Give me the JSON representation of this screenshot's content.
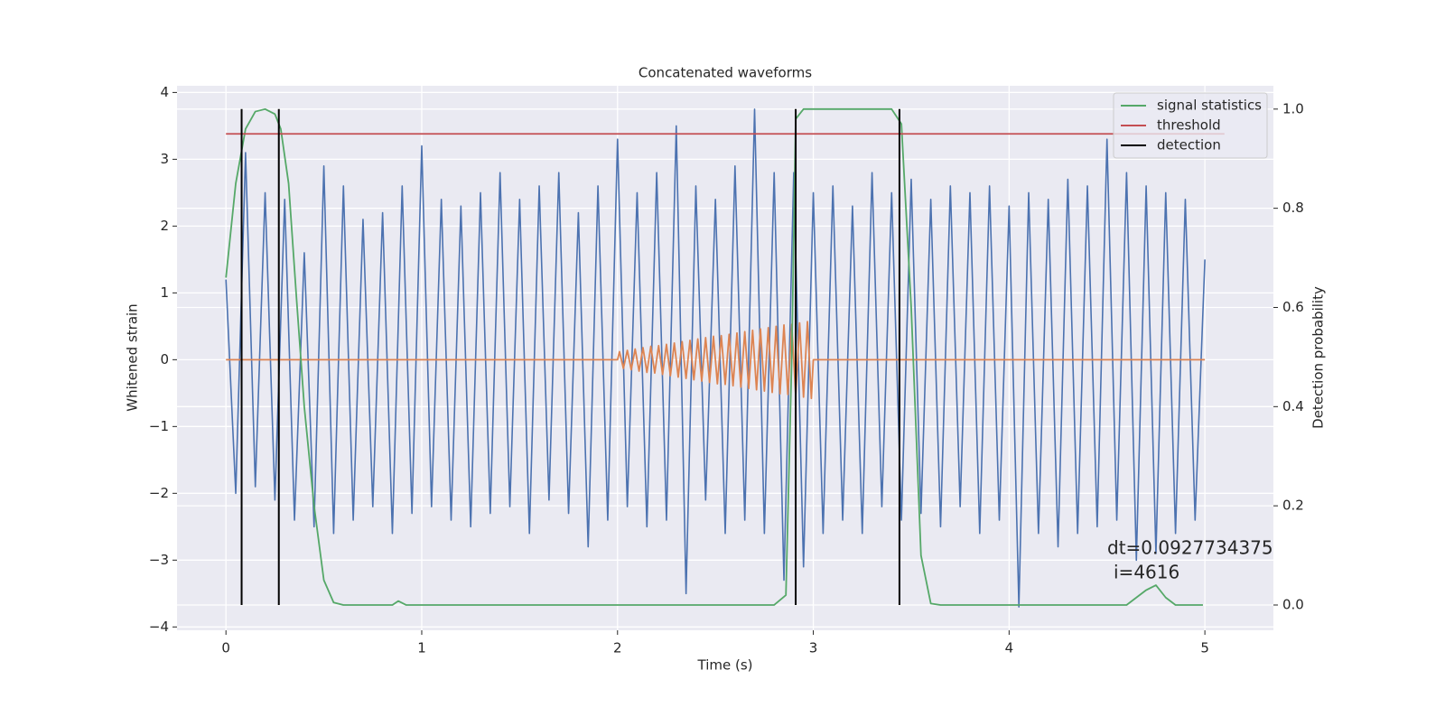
{
  "chart_data": {
    "type": "line",
    "title": "Concatenated waveforms",
    "xlabel": "Time (s)",
    "ylabel": "Whitened strain",
    "y2label": "Detection probability",
    "xlim": [
      -0.25,
      5.35
    ],
    "xticks": [
      0,
      1,
      2,
      3,
      4,
      5
    ],
    "ylim": [
      -4.05,
      4.1
    ],
    "yticks": [
      {
        "value": -4,
        "label": "−4"
      },
      {
        "value": -3,
        "label": "−3"
      },
      {
        "value": -2,
        "label": "−2"
      },
      {
        "value": -1,
        "label": "−1"
      },
      0,
      1,
      2,
      3,
      4
    ],
    "y2lim": [
      -0.051,
      1.047
    ],
    "y2ticks": [
      {
        "value": 0,
        "label": "0.0"
      },
      0.2,
      0.4,
      0.6,
      0.8,
      {
        "value": 1,
        "label": "1.0"
      }
    ],
    "grid": true,
    "legend": "upper right",
    "series": [
      {
        "color": "#4c72b0",
        "x": [
          0,
          0.05,
          0.1,
          0.15,
          0.2,
          0.25,
          0.3,
          0.35,
          0.4,
          0.45,
          0.5,
          0.55,
          0.6,
          0.65,
          0.7,
          0.75,
          0.8,
          0.85,
          0.9,
          0.95,
          1,
          1.05,
          1.1,
          1.15,
          1.2,
          1.25,
          1.3,
          1.35,
          1.4,
          1.45,
          1.5,
          1.55,
          1.6,
          1.65,
          1.7,
          1.75,
          1.8,
          1.85,
          1.9,
          1.95,
          2,
          2.05,
          2.1,
          2.15,
          2.2,
          2.25,
          2.3,
          2.35,
          2.4,
          2.45,
          2.5,
          2.55,
          2.6,
          2.65,
          2.7,
          2.75,
          2.8,
          2.85,
          2.9,
          2.95,
          3,
          3.05,
          3.1,
          3.15,
          3.2,
          3.25,
          3.3,
          3.35,
          3.4,
          3.45,
          3.5,
          3.55,
          3.6,
          3.65,
          3.7,
          3.75,
          3.8,
          3.85,
          3.9,
          3.95,
          4,
          4.05,
          4.1,
          4.15,
          4.2,
          4.25,
          4.3,
          4.35,
          4.4,
          4.45,
          4.5,
          4.55,
          4.6,
          4.65,
          4.7,
          4.75,
          4.8,
          4.85,
          4.9,
          4.95,
          5
        ],
        "values": [
          1.2,
          -2.0,
          3.1,
          -1.9,
          2.5,
          -2.1,
          2.4,
          -2.4,
          1.6,
          -2.5,
          2.9,
          -2.6,
          2.6,
          -2.4,
          2.1,
          -2.2,
          2.2,
          -2.6,
          2.6,
          -2.3,
          3.2,
          -2.2,
          2.4,
          -2.4,
          2.3,
          -2.5,
          2.5,
          -2.3,
          2.8,
          -2.2,
          2.4,
          -2.6,
          2.6,
          -2.1,
          2.8,
          -2.3,
          2.2,
          -2.8,
          2.6,
          -2.4,
          3.3,
          -2.2,
          2.5,
          -2.5,
          2.8,
          -2.4,
          3.5,
          -3.5,
          2.6,
          -2.1,
          2.4,
          -2.6,
          2.9,
          -2.4,
          3.75,
          -2.6,
          2.8,
          -3.3,
          2.8,
          -3.1,
          2.5,
          -2.6,
          2.6,
          -2.4,
          2.3,
          -2.6,
          2.8,
          -2.2,
          2.5,
          -2.4,
          2.7,
          -2.3,
          2.4,
          -2.5,
          2.6,
          -2.2,
          2.5,
          -2.6,
          2.6,
          -2.4,
          2.3,
          -3.7,
          2.5,
          -2.6,
          2.4,
          -2.8,
          2.7,
          -2.6,
          2.6,
          -2.5,
          3.3,
          -2.4,
          2.8,
          -3.0,
          2.6,
          -2.9,
          2.5,
          -2.6,
          2.4,
          -2.4,
          1.5
        ]
      },
      {
        "color": "#dd8452",
        "x": [
          0,
          2,
          2.01,
          2.03,
          2.05,
          2.07,
          2.09,
          2.11,
          2.13,
          2.15,
          2.17,
          2.19,
          2.21,
          2.23,
          2.25,
          2.27,
          2.29,
          2.31,
          2.33,
          2.35,
          2.37,
          2.39,
          2.41,
          2.43,
          2.45,
          2.47,
          2.49,
          2.51,
          2.53,
          2.55,
          2.57,
          2.59,
          2.61,
          2.63,
          2.65,
          2.67,
          2.69,
          2.71,
          2.73,
          2.75,
          2.77,
          2.79,
          2.81,
          2.83,
          2.85,
          2.87,
          2.89,
          2.91,
          2.93,
          2.95,
          2.97,
          2.99,
          3,
          5
        ],
        "values": [
          0,
          0,
          0.12,
          -0.13,
          0.14,
          -0.15,
          0.16,
          -0.17,
          0.18,
          -0.19,
          0.2,
          -0.2,
          0.21,
          -0.22,
          0.23,
          -0.24,
          0.25,
          -0.26,
          0.27,
          -0.28,
          0.29,
          -0.3,
          0.31,
          -0.32,
          0.33,
          -0.34,
          0.35,
          -0.36,
          0.36,
          -0.37,
          0.38,
          -0.39,
          0.4,
          -0.41,
          0.42,
          -0.43,
          0.44,
          -0.45,
          0.46,
          -0.47,
          0.48,
          -0.49,
          0.5,
          -0.51,
          0.52,
          -0.52,
          0.53,
          -0.54,
          0.55,
          -0.56,
          0.57,
          -0.58,
          0,
          0
        ]
      },
      {
        "name": "signal statistics",
        "color": "#55a868",
        "axis": "y2",
        "x": [
          0,
          0.05,
          0.1,
          0.15,
          0.2,
          0.25,
          0.28,
          0.32,
          0.36,
          0.4,
          0.45,
          0.5,
          0.55,
          0.6,
          0.85,
          0.88,
          0.92,
          2.8,
          2.86,
          2.89,
          2.91,
          2.95,
          3.4,
          3.45,
          3.5,
          3.55,
          3.6,
          3.65,
          4.6,
          4.7,
          4.75,
          4.8,
          4.85,
          4.99
        ],
        "values": [
          0.66,
          0.85,
          0.96,
          0.995,
          1.0,
          0.99,
          0.96,
          0.85,
          0.62,
          0.4,
          0.2,
          0.05,
          0.005,
          0,
          0,
          0.008,
          0,
          0,
          0.02,
          0.5,
          0.98,
          1.0,
          1.0,
          0.97,
          0.6,
          0.1,
          0.003,
          0,
          0,
          0.03,
          0.04,
          0.015,
          0,
          0
        ]
      },
      {
        "name": "threshold",
        "color": "#c44e52",
        "axis": "y2",
        "x": [
          0,
          5.1
        ],
        "values": [
          0.95,
          0.95
        ]
      },
      {
        "name": "detection",
        "color": "#000000",
        "axis": "y2",
        "type": "vlines",
        "x": [
          0.08,
          0.27,
          2.91,
          3.44
        ],
        "ymin": 0,
        "ymax": 1
      }
    ],
    "annotations": [
      "dt=0.0927734375",
      "i=4616"
    ]
  }
}
